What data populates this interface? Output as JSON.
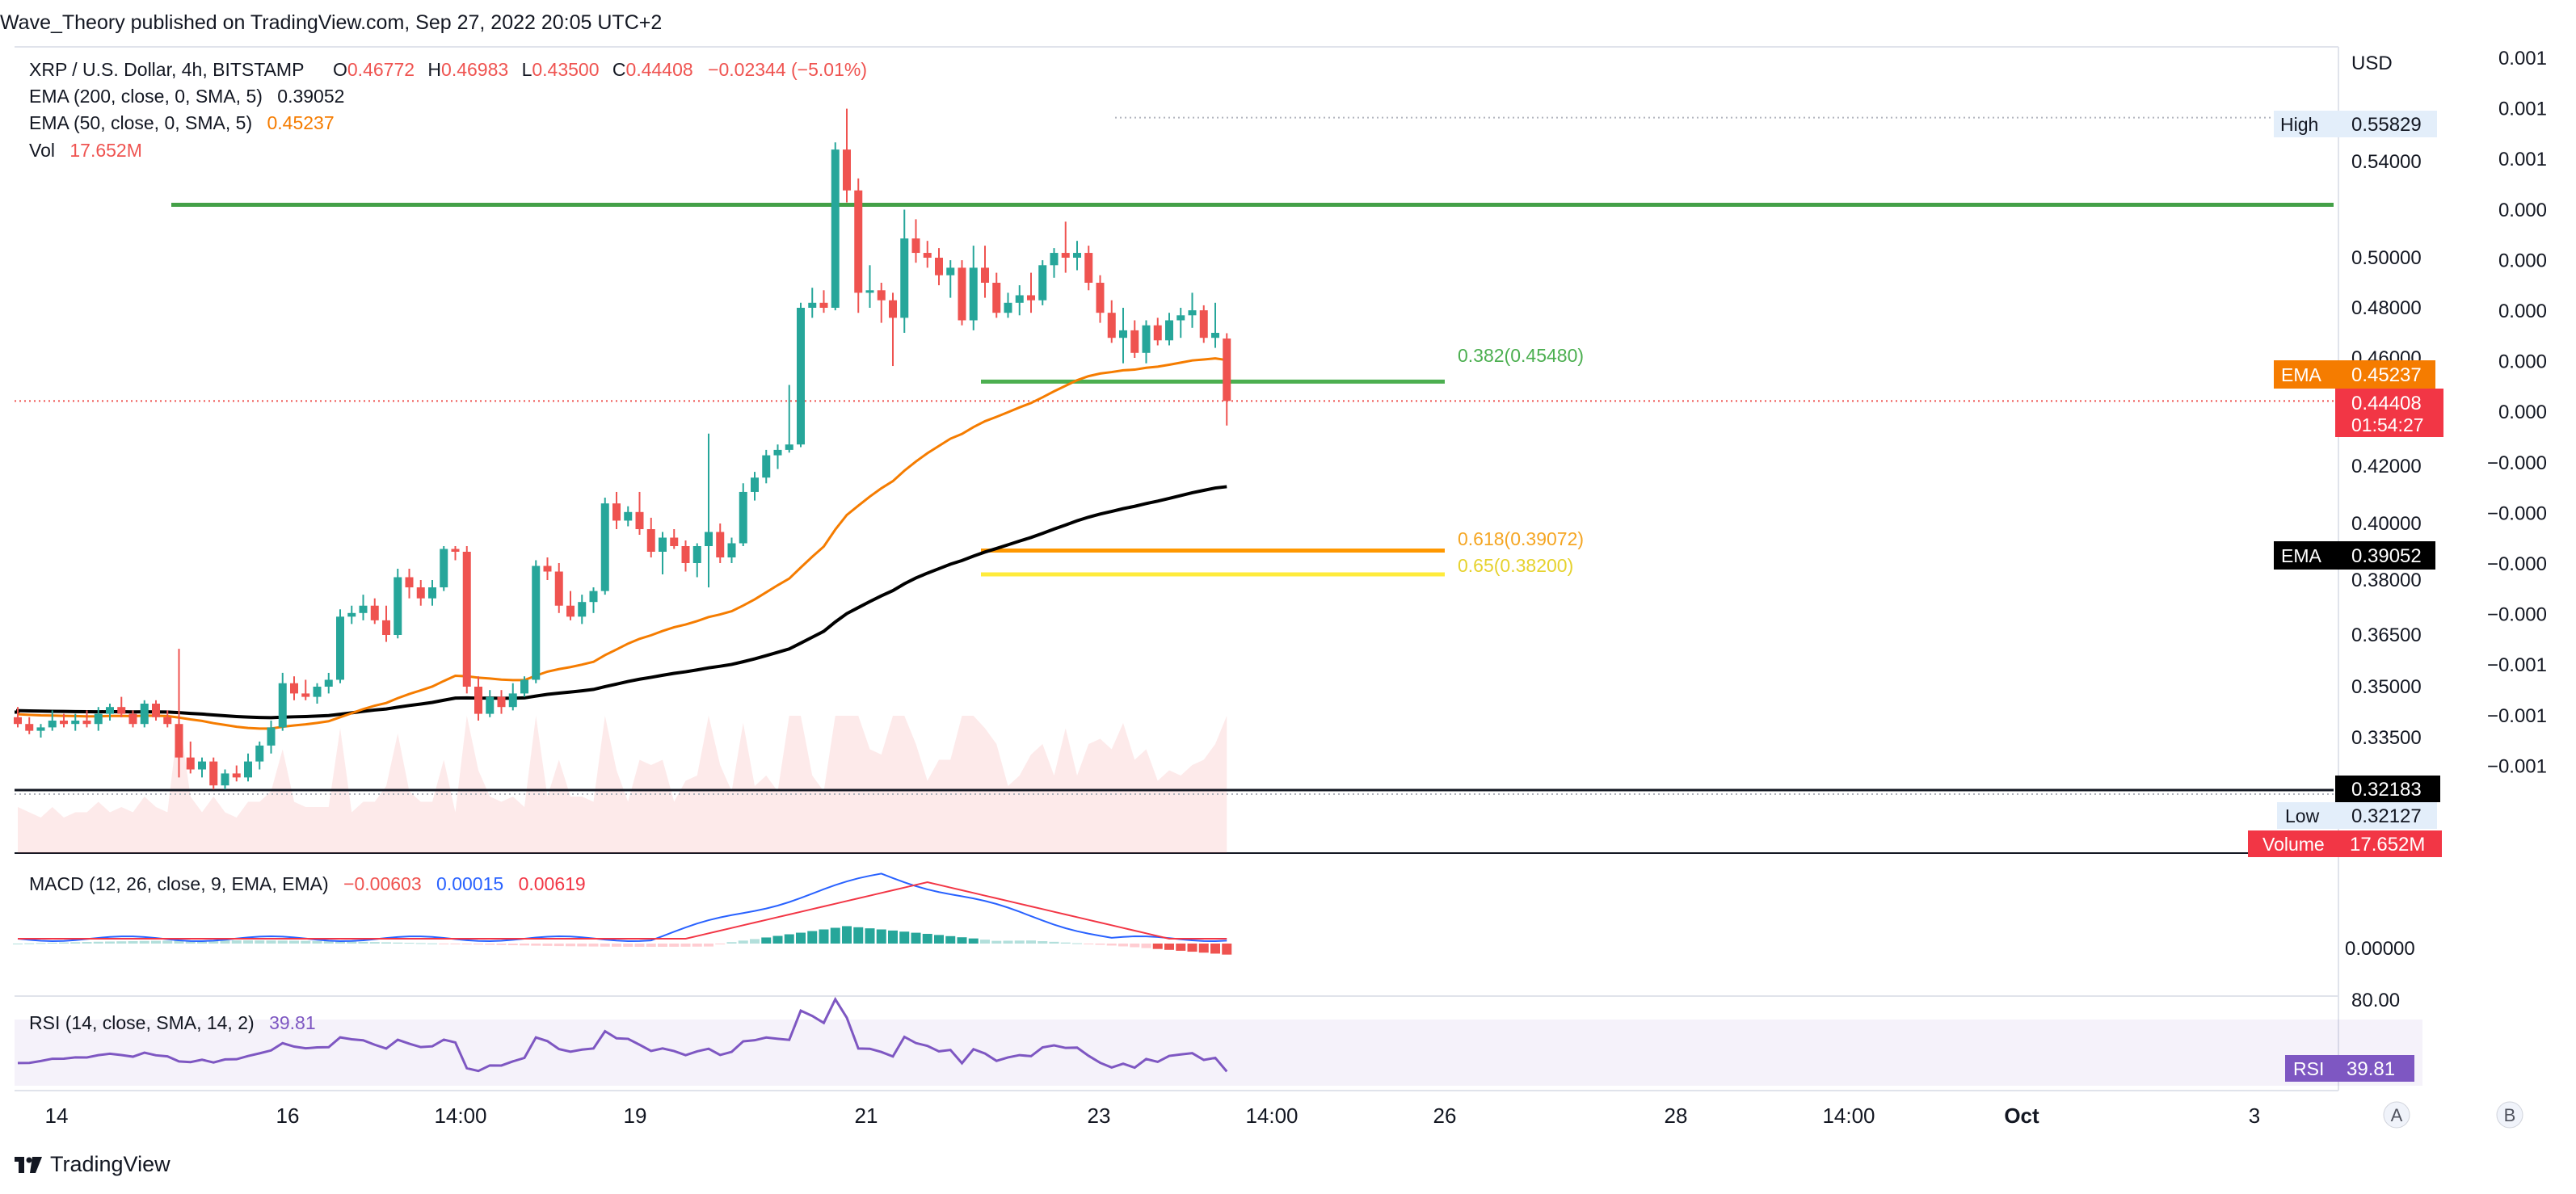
{
  "header": {
    "publisher": "Wave_Theory published on TradingView.com, Sep 27, 2022 20:05 UTC+2"
  },
  "legend": {
    "symbol": "XRP / U.S. Dollar, 4h, BITSTAMP",
    "o_label": "O",
    "o": "0.46772",
    "h_label": "H",
    "h": "0.46983",
    "l_label": "L",
    "l": "0.43500",
    "c_label": "C",
    "c": "0.44408",
    "change": "−0.02344 (−5.01%)",
    "ema200_label": "EMA (200, close, 0, SMA, 5)",
    "ema200_value": "0.39052",
    "ema50_label": "EMA (50, close, 0, SMA, 5)",
    "ema50_value": "0.45237",
    "vol_label": "Vol",
    "vol_value": "17.652M"
  },
  "price_axis": {
    "currency": "USD",
    "ticks": [
      "0.54000",
      "0.50000",
      "0.48000",
      "0.46000",
      "0.42000",
      "0.40000",
      "0.38000",
      "0.36500",
      "0.35000",
      "0.33500"
    ],
    "secondary_ticks": [
      "0.001",
      "0.001",
      "0.001",
      "0.000",
      "0.000",
      "0.000",
      "0.000",
      "0.000",
      "−0.000",
      "−0.000",
      "−0.000",
      "−0.000",
      "−0.001",
      "−0.001",
      "−0.001"
    ],
    "high_label": "High",
    "high_value": "0.55829",
    "low_label": "Low",
    "low_value": "0.32127",
    "ema50_tag": "EMA",
    "ema50_tag_value": "0.45237",
    "ema200_tag": "EMA",
    "ema200_tag_value": "0.39052",
    "last_price": "0.44408",
    "countdown": "01:54:27",
    "support_price": "0.32183",
    "volume_tag": "Volume",
    "volume_tag_value": "17.652M"
  },
  "fib": {
    "f382": "0.382(0.45480)",
    "f618": "0.618(0.39072)",
    "f65": "0.65(0.38200)"
  },
  "macd": {
    "label": "MACD (12, 26, close, 9, EMA, EMA)",
    "v1": "−0.00603",
    "v2": "0.00015",
    "v3": "0.00619",
    "axis_tick": "0.00000"
  },
  "rsi": {
    "label": "RSI (14, close, SMA, 14, 2)",
    "value": "39.81",
    "axis_tick": "80.00",
    "tag": "RSI",
    "tag_value": "39.81"
  },
  "time_axis": {
    "ticks": [
      "14",
      "16",
      "14:00",
      "19",
      "21",
      "23",
      "14:00",
      "26",
      "28",
      "14:00",
      "Oct",
      "3"
    ]
  },
  "scale_buttons": [
    "A",
    "B"
  ],
  "footer": {
    "brand": "TradingView"
  },
  "colors": {
    "up": "#26a69a",
    "down": "#ef5350",
    "ema50": "#f57c00",
    "ema200": "#000000",
    "fib382": "#4caf50",
    "fib618": "#ff9800",
    "fib65": "#ffeb3b",
    "resistance": "#43a047",
    "macd": "#2962ff",
    "signal": "#f23645",
    "rsi": "#7e57c2"
  },
  "chart_data": [
    {
      "type": "candlestick",
      "title": "XRP / U.S. Dollar, 4h, BITSTAMP",
      "ylim": [
        0.315,
        0.562
      ],
      "x_tick_labels": [
        "14",
        "16",
        "14:00",
        "19",
        "21",
        "23",
        "14:00",
        "26",
        "28",
        "14:00",
        "Oct",
        "3"
      ],
      "candles_ohlc": [
        [
          0.341,
          0.344,
          0.338,
          0.339
        ],
        [
          0.339,
          0.341,
          0.336,
          0.337
        ],
        [
          0.337,
          0.339,
          0.335,
          0.338
        ],
        [
          0.338,
          0.343,
          0.337,
          0.34
        ],
        [
          0.34,
          0.342,
          0.338,
          0.339
        ],
        [
          0.339,
          0.342,
          0.337,
          0.34
        ],
        [
          0.34,
          0.343,
          0.338,
          0.339
        ],
        [
          0.339,
          0.344,
          0.337,
          0.342
        ],
        [
          0.342,
          0.345,
          0.34,
          0.344
        ],
        [
          0.344,
          0.347,
          0.341,
          0.342
        ],
        [
          0.342,
          0.343,
          0.338,
          0.339
        ],
        [
          0.339,
          0.346,
          0.338,
          0.345
        ],
        [
          0.345,
          0.346,
          0.34,
          0.341
        ],
        [
          0.341,
          0.343,
          0.338,
          0.339
        ],
        [
          0.339,
          0.361,
          0.325,
          0.33
        ],
        [
          0.33,
          0.334,
          0.326,
          0.327
        ],
        [
          0.327,
          0.33,
          0.325,
          0.329
        ],
        [
          0.329,
          0.33,
          0.322,
          0.323
        ],
        [
          0.323,
          0.327,
          0.322,
          0.326
        ],
        [
          0.326,
          0.328,
          0.324,
          0.325
        ],
        [
          0.325,
          0.331,
          0.324,
          0.329
        ],
        [
          0.329,
          0.334,
          0.327,
          0.333
        ],
        [
          0.333,
          0.34,
          0.331,
          0.338
        ],
        [
          0.338,
          0.354,
          0.337,
          0.351
        ],
        [
          0.351,
          0.353,
          0.346,
          0.348
        ],
        [
          0.348,
          0.352,
          0.346,
          0.347
        ],
        [
          0.347,
          0.351,
          0.345,
          0.35
        ],
        [
          0.35,
          0.354,
          0.348,
          0.352
        ],
        [
          0.352,
          0.372,
          0.351,
          0.37
        ],
        [
          0.37,
          0.373,
          0.368,
          0.371
        ],
        [
          0.371,
          0.376,
          0.369,
          0.373
        ],
        [
          0.373,
          0.375,
          0.368,
          0.369
        ],
        [
          0.369,
          0.373,
          0.363,
          0.365
        ],
        [
          0.365,
          0.384,
          0.364,
          0.381
        ],
        [
          0.381,
          0.384,
          0.375,
          0.378
        ],
        [
          0.378,
          0.38,
          0.373,
          0.375
        ],
        [
          0.375,
          0.38,
          0.373,
          0.378
        ],
        [
          0.378,
          0.392,
          0.377,
          0.391
        ],
        [
          0.391,
          0.392,
          0.387,
          0.39
        ],
        [
          0.39,
          0.392,
          0.348,
          0.35
        ],
        [
          0.35,
          0.353,
          0.34,
          0.342
        ],
        [
          0.342,
          0.349,
          0.341,
          0.347
        ],
        [
          0.347,
          0.349,
          0.342,
          0.344
        ],
        [
          0.344,
          0.351,
          0.343,
          0.348
        ],
        [
          0.348,
          0.353,
          0.347,
          0.352
        ],
        [
          0.352,
          0.387,
          0.351,
          0.385
        ],
        [
          0.385,
          0.388,
          0.38,
          0.383
        ],
        [
          0.383,
          0.386,
          0.371,
          0.373
        ],
        [
          0.373,
          0.377,
          0.369,
          0.37
        ],
        [
          0.37,
          0.376,
          0.368,
          0.374
        ],
        [
          0.374,
          0.378,
          0.371,
          0.377
        ],
        [
          0.377,
          0.409,
          0.376,
          0.407
        ],
        [
          0.407,
          0.411,
          0.398,
          0.401
        ],
        [
          0.401,
          0.406,
          0.399,
          0.404
        ],
        [
          0.404,
          0.411,
          0.396,
          0.398
        ],
        [
          0.398,
          0.402,
          0.388,
          0.39
        ],
        [
          0.39,
          0.397,
          0.382,
          0.395
        ],
        [
          0.395,
          0.398,
          0.391,
          0.392
        ],
        [
          0.392,
          0.394,
          0.383,
          0.386
        ],
        [
          0.386,
          0.393,
          0.381,
          0.392
        ],
        [
          0.392,
          0.432,
          0.378,
          0.397
        ],
        [
          0.397,
          0.4,
          0.386,
          0.388
        ],
        [
          0.388,
          0.395,
          0.386,
          0.393
        ],
        [
          0.393,
          0.414,
          0.392,
          0.411
        ],
        [
          0.411,
          0.418,
          0.408,
          0.416
        ],
        [
          0.416,
          0.426,
          0.414,
          0.424
        ],
        [
          0.424,
          0.428,
          0.419,
          0.426
        ],
        [
          0.426,
          0.45,
          0.425,
          0.428
        ],
        [
          0.428,
          0.482,
          0.427,
          0.48
        ],
        [
          0.48,
          0.488,
          0.476,
          0.482
        ],
        [
          0.482,
          0.487,
          0.478,
          0.48
        ],
        [
          0.48,
          0.548,
          0.479,
          0.545
        ],
        [
          0.545,
          0.562,
          0.523,
          0.528
        ],
        [
          0.528,
          0.533,
          0.478,
          0.486
        ],
        [
          0.486,
          0.497,
          0.48,
          0.487
        ],
        [
          0.487,
          0.49,
          0.474,
          0.483
        ],
        [
          0.483,
          0.486,
          0.457,
          0.476
        ],
        [
          0.476,
          0.52,
          0.47,
          0.508
        ],
        [
          0.508,
          0.516,
          0.498,
          0.502
        ],
        [
          0.502,
          0.507,
          0.496,
          0.5
        ],
        [
          0.5,
          0.504,
          0.489,
          0.493
        ],
        [
          0.493,
          0.499,
          0.484,
          0.496
        ],
        [
          0.496,
          0.499,
          0.473,
          0.475
        ],
        [
          0.475,
          0.505,
          0.471,
          0.496
        ],
        [
          0.496,
          0.505,
          0.484,
          0.49
        ],
        [
          0.49,
          0.494,
          0.476,
          0.478
        ],
        [
          0.478,
          0.486,
          0.476,
          0.482
        ],
        [
          0.482,
          0.489,
          0.477,
          0.485
        ],
        [
          0.485,
          0.494,
          0.478,
          0.483
        ],
        [
          0.483,
          0.499,
          0.481,
          0.497
        ],
        [
          0.497,
          0.504,
          0.492,
          0.502
        ],
        [
          0.502,
          0.515,
          0.494,
          0.5
        ],
        [
          0.5,
          0.507,
          0.495,
          0.502
        ],
        [
          0.502,
          0.505,
          0.487,
          0.49
        ],
        [
          0.49,
          0.493,
          0.474,
          0.478
        ],
        [
          0.478,
          0.483,
          0.466,
          0.468
        ],
        [
          0.468,
          0.48,
          0.458,
          0.471
        ],
        [
          0.471,
          0.475,
          0.46,
          0.462
        ],
        [
          0.462,
          0.475,
          0.458,
          0.473
        ],
        [
          0.473,
          0.476,
          0.465,
          0.467
        ],
        [
          0.467,
          0.478,
          0.465,
          0.475
        ],
        [
          0.475,
          0.48,
          0.468,
          0.477
        ],
        [
          0.477,
          0.486,
          0.472,
          0.479
        ],
        [
          0.479,
          0.481,
          0.466,
          0.468
        ],
        [
          0.468,
          0.482,
          0.464,
          0.47
        ],
        [
          0.46772,
          0.46983,
          0.435,
          0.44408
        ]
      ],
      "volume_shown": "17.652M",
      "horizontal_levels": {
        "resistance": 0.522,
        "fib_0_382": 0.4548,
        "fib_0_618": 0.39072,
        "fib_0_65": 0.382,
        "support": 0.32183
      },
      "ema50_last": 0.45237,
      "ema200_last": 0.39052,
      "last_price": 0.44408,
      "high": 0.55829,
      "low": 0.32127
    },
    {
      "type": "macd",
      "title": "MACD (12, 26, close, 9, EMA, EMA)",
      "values_last": {
        "histogram": -0.00603,
        "macd": 0.00015,
        "signal": 0.00619
      }
    },
    {
      "type": "line",
      "title": "RSI (14, close, SMA, 14, 2)",
      "ylim": [
        30,
        80
      ],
      "values_last": 39.81
    }
  ]
}
